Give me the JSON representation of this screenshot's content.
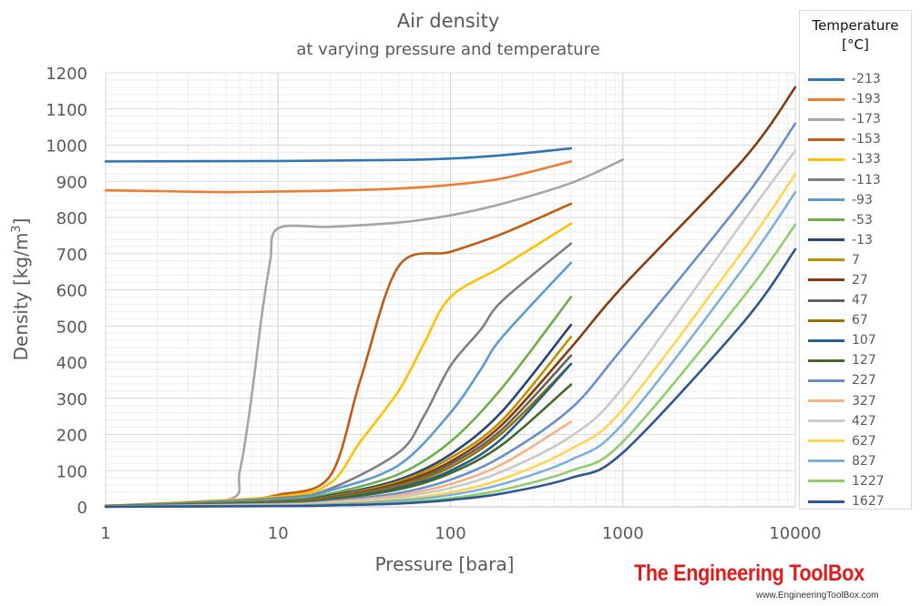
{
  "chart_data": {
    "type": "line",
    "title": "Air density",
    "subtitle": "at varying pressure and temperature",
    "xlabel": "Pressure [bara]",
    "ylabel": "Density [kg/m3]",
    "x_scale": "log",
    "xlim": [
      1,
      10000
    ],
    "ylim": [
      0,
      1200
    ],
    "x_ticks": [
      "1",
      "10",
      "100",
      "1000",
      "10000"
    ],
    "y_ticks": [
      "0",
      "100",
      "200",
      "300",
      "400",
      "500",
      "600",
      "700",
      "800",
      "900",
      "1000",
      "1100",
      "1200"
    ],
    "grid": true,
    "legend_title": "Temperature [°C]",
    "legend_position": "right",
    "series": [
      {
        "name": "-213",
        "color": "#2e75b6",
        "points": [
          [
            1,
            955
          ],
          [
            10,
            956
          ],
          [
            50,
            959
          ],
          [
            100,
            963
          ],
          [
            200,
            972
          ],
          [
            500,
            991
          ]
        ]
      },
      {
        "name": "-193",
        "color": "#ed7d31",
        "points": [
          [
            1,
            875
          ],
          [
            2,
            873
          ],
          [
            5,
            870
          ],
          [
            10,
            872
          ],
          [
            20,
            874
          ],
          [
            50,
            880
          ],
          [
            100,
            890
          ],
          [
            200,
            908
          ],
          [
            500,
            955
          ]
        ]
      },
      {
        "name": "-173",
        "color": "#a5a5a5",
        "points": [
          [
            1,
            3.5
          ],
          [
            5,
            18
          ],
          [
            6,
            100
          ],
          [
            7,
            300
          ],
          [
            8,
            520
          ],
          [
            9,
            680
          ],
          [
            10,
            770
          ],
          [
            20,
            774
          ],
          [
            50,
            786
          ],
          [
            100,
            806
          ],
          [
            200,
            838
          ],
          [
            500,
            895
          ],
          [
            1000,
            960
          ]
        ]
      },
      {
        "name": "-153",
        "color": "#c55a11",
        "points": [
          [
            1,
            3.0
          ],
          [
            5,
            16
          ],
          [
            10,
            33
          ],
          [
            20,
            85
          ],
          [
            30,
            350
          ],
          [
            50,
            665
          ],
          [
            100,
            705
          ],
          [
            200,
            755
          ],
          [
            500,
            838
          ]
        ]
      },
      {
        "name": "-133",
        "color": "#ffc000",
        "points": [
          [
            1,
            2.7
          ],
          [
            10,
            28
          ],
          [
            20,
            65
          ],
          [
            30,
            180
          ],
          [
            50,
            320
          ],
          [
            70,
            450
          ],
          [
            100,
            580
          ],
          [
            200,
            665
          ],
          [
            500,
            783
          ]
        ]
      },
      {
        "name": "-113",
        "color": "#7f7f7f",
        "points": [
          [
            1,
            2.3
          ],
          [
            10,
            24
          ],
          [
            20,
            50
          ],
          [
            50,
            150
          ],
          [
            70,
            250
          ],
          [
            100,
            390
          ],
          [
            150,
            490
          ],
          [
            200,
            570
          ],
          [
            500,
            728
          ]
        ]
      },
      {
        "name": "-93",
        "color": "#5b9bd5",
        "points": [
          [
            1,
            2.1
          ],
          [
            10,
            21
          ],
          [
            20,
            45
          ],
          [
            50,
            115
          ],
          [
            100,
            260
          ],
          [
            150,
            380
          ],
          [
            200,
            470
          ],
          [
            500,
            675
          ]
        ]
      },
      {
        "name": "-53",
        "color": "#70ad47",
        "points": [
          [
            1,
            1.8
          ],
          [
            10,
            17
          ],
          [
            20,
            36
          ],
          [
            50,
            90
          ],
          [
            100,
            180
          ],
          [
            200,
            330
          ],
          [
            500,
            580
          ]
        ]
      },
      {
        "name": "-13",
        "color": "#264478",
        "points": [
          [
            1,
            1.6
          ],
          [
            10,
            15
          ],
          [
            20,
            31
          ],
          [
            50,
            75
          ],
          [
            100,
            145
          ],
          [
            200,
            265
          ],
          [
            500,
            503
          ]
        ]
      },
      {
        "name": "7",
        "color": "#bf9000",
        "points": [
          [
            1,
            1.5
          ],
          [
            10,
            14
          ],
          [
            20,
            28
          ],
          [
            50,
            70
          ],
          [
            100,
            135
          ],
          [
            200,
            240
          ],
          [
            500,
            470
          ]
        ]
      },
      {
        "name": "27",
        "color": "#843c0c",
        "points": [
          [
            1,
            1.3
          ],
          [
            10,
            13
          ],
          [
            20,
            26
          ],
          [
            50,
            65
          ],
          [
            100,
            125
          ],
          [
            200,
            228
          ],
          [
            500,
            440
          ],
          [
            1000,
            610
          ],
          [
            5000,
            960
          ],
          [
            10000,
            1160
          ]
        ]
      },
      {
        "name": "47",
        "color": "#636363",
        "points": [
          [
            1,
            1.25
          ],
          [
            10,
            12.5
          ],
          [
            20,
            25
          ],
          [
            50,
            60
          ],
          [
            100,
            118
          ],
          [
            200,
            215
          ],
          [
            500,
            418
          ]
        ]
      },
      {
        "name": "67",
        "color": "#997300",
        "points": [
          [
            1,
            1.2
          ],
          [
            10,
            11.8
          ],
          [
            20,
            23
          ],
          [
            50,
            57
          ],
          [
            100,
            110
          ],
          [
            200,
            205
          ],
          [
            500,
            395
          ]
        ]
      },
      {
        "name": "107",
        "color": "#255e91",
        "points": [
          [
            1,
            1.1
          ],
          [
            10,
            10.5
          ],
          [
            20,
            21
          ],
          [
            50,
            52
          ],
          [
            100,
            100
          ],
          [
            200,
            190
          ],
          [
            500,
            395
          ]
        ]
      },
      {
        "name": "127",
        "color": "#43682b",
        "points": [
          [
            1,
            1.05
          ],
          [
            10,
            10
          ],
          [
            20,
            20
          ],
          [
            50,
            48
          ],
          [
            100,
            93
          ],
          [
            200,
            172
          ],
          [
            500,
            338
          ]
        ]
      },
      {
        "name": "227",
        "color": "#698ed0",
        "points": [
          [
            1,
            0.9
          ],
          [
            10,
            8
          ],
          [
            20,
            16
          ],
          [
            50,
            38
          ],
          [
            100,
            75
          ],
          [
            200,
            140
          ],
          [
            500,
            272
          ],
          [
            1000,
            440
          ],
          [
            5000,
            850
          ],
          [
            10000,
            1060
          ]
        ]
      },
      {
        "name": "327",
        "color": "#f4b183",
        "points": [
          [
            1,
            0.75
          ],
          [
            10,
            6.5
          ],
          [
            20,
            13
          ],
          [
            50,
            32
          ],
          [
            100,
            63
          ],
          [
            200,
            118
          ],
          [
            500,
            235
          ]
        ]
      },
      {
        "name": "427",
        "color": "#c9c9c9",
        "points": [
          [
            1,
            0.6
          ],
          [
            10,
            5.5
          ],
          [
            20,
            11
          ],
          [
            50,
            27
          ],
          [
            100,
            52
          ],
          [
            200,
            98
          ],
          [
            500,
            195
          ],
          [
            1000,
            330
          ],
          [
            5000,
            790
          ],
          [
            10000,
            985
          ]
        ]
      },
      {
        "name": "627",
        "color": "#ffd44f",
        "points": [
          [
            1,
            0.5
          ],
          [
            10,
            4.3
          ],
          [
            20,
            9
          ],
          [
            50,
            21
          ],
          [
            100,
            40
          ],
          [
            200,
            77
          ],
          [
            500,
            160
          ],
          [
            1000,
            270
          ],
          [
            5000,
            710
          ],
          [
            10000,
            920
          ]
        ]
      },
      {
        "name": "827",
        "color": "#7fafdd",
        "points": [
          [
            1,
            0.4
          ],
          [
            10,
            3.5
          ],
          [
            20,
            7
          ],
          [
            50,
            17
          ],
          [
            100,
            33
          ],
          [
            200,
            63
          ],
          [
            500,
            130
          ],
          [
            1000,
            230
          ],
          [
            5000,
            660
          ],
          [
            10000,
            870
          ]
        ]
      },
      {
        "name": "1227",
        "color": "#8fcf6a",
        "points": [
          [
            1,
            0.3
          ],
          [
            10,
            2.5
          ],
          [
            20,
            5
          ],
          [
            50,
            12
          ],
          [
            100,
            24
          ],
          [
            200,
            47
          ],
          [
            500,
            100
          ],
          [
            1000,
            180
          ],
          [
            5000,
            580
          ],
          [
            10000,
            780
          ]
        ]
      },
      {
        "name": "1627",
        "color": "#2f5597",
        "points": [
          [
            1,
            0.2
          ],
          [
            10,
            2
          ],
          [
            20,
            4
          ],
          [
            50,
            9
          ],
          [
            100,
            19
          ],
          [
            200,
            37
          ],
          [
            500,
            80
          ],
          [
            1000,
            150
          ],
          [
            5000,
            510
          ],
          [
            10000,
            712
          ]
        ]
      }
    ]
  },
  "watermark": {
    "brand": "The Engineering ToolBox",
    "url": "www.EngineeringToolBox.com"
  }
}
